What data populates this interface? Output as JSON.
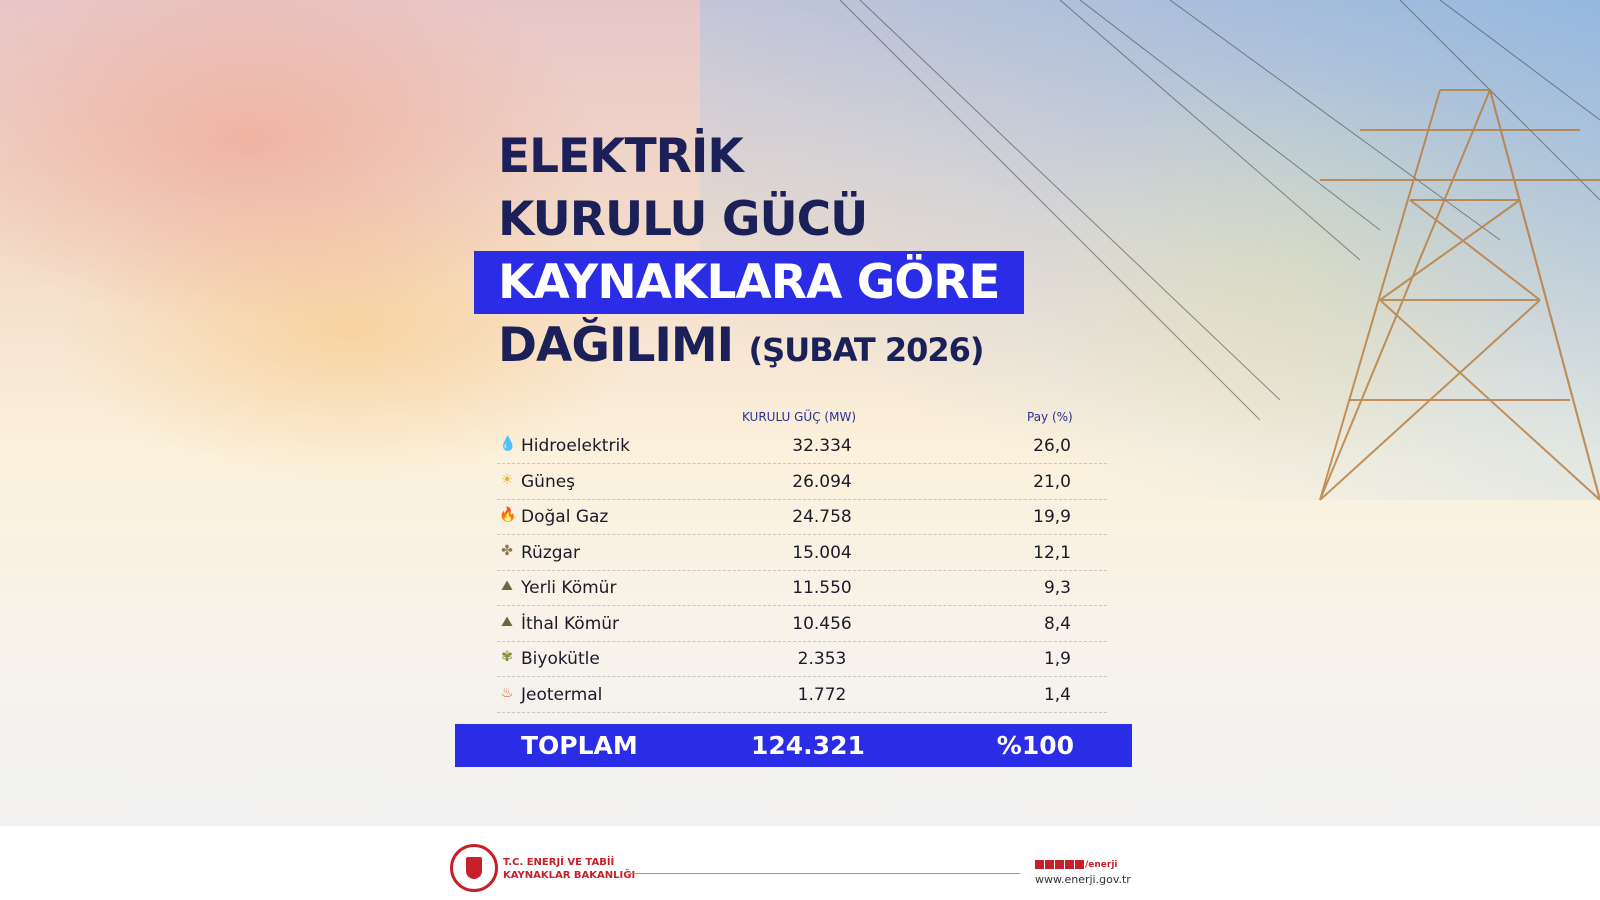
{
  "title": {
    "line1": "ELEKTRİK",
    "line2": "KURULU GÜCÜ",
    "line3": "KAYNAKLARA GÖRE",
    "line4": "DAĞILIMI",
    "period": "(ŞUBAT 2026)"
  },
  "table": {
    "col_mw": "KURULU GÜÇ (MW)",
    "col_pct": "Pay (%)",
    "rows": [
      {
        "icon": "water-drop-icon",
        "name": "Hidroelektrik",
        "mw": "32.334",
        "pct": "26,0"
      },
      {
        "icon": "sun-icon",
        "name": "Güneş",
        "mw": "26.094",
        "pct": "21,0"
      },
      {
        "icon": "gas-flame-icon",
        "name": "Doğal Gaz",
        "mw": "24.758",
        "pct": "19,9"
      },
      {
        "icon": "wind-turbine-icon",
        "name": "Rüzgar",
        "mw": "15.004",
        "pct": "12,1"
      },
      {
        "icon": "coal-icon",
        "name": "Yerli Kömür",
        "mw": "11.550",
        "pct": "9,3"
      },
      {
        "icon": "coal-icon",
        "name": "İthal Kömür",
        "mw": "10.456",
        "pct": "8,4"
      },
      {
        "icon": "biomass-icon",
        "name": "Biyokütle",
        "mw": "2.353",
        "pct": "1,9"
      },
      {
        "icon": "geothermal-icon",
        "name": "Jeotermal",
        "mw": "1.772",
        "pct": "1,4"
      }
    ],
    "total": {
      "label": "TOPLAM",
      "mw": "124.321",
      "pct": "%100"
    }
  },
  "footer": {
    "ministry_line1": "T.C. ENERJİ VE TABİİ",
    "ministry_line2": "KAYNAKLAR BAKANLIĞI",
    "social_handle": "/enerji",
    "website": "www.enerji.gov.tr"
  },
  "colors": {
    "accent": "#2b2de6",
    "title": "#1c2058",
    "brand": "#c8202a"
  }
}
